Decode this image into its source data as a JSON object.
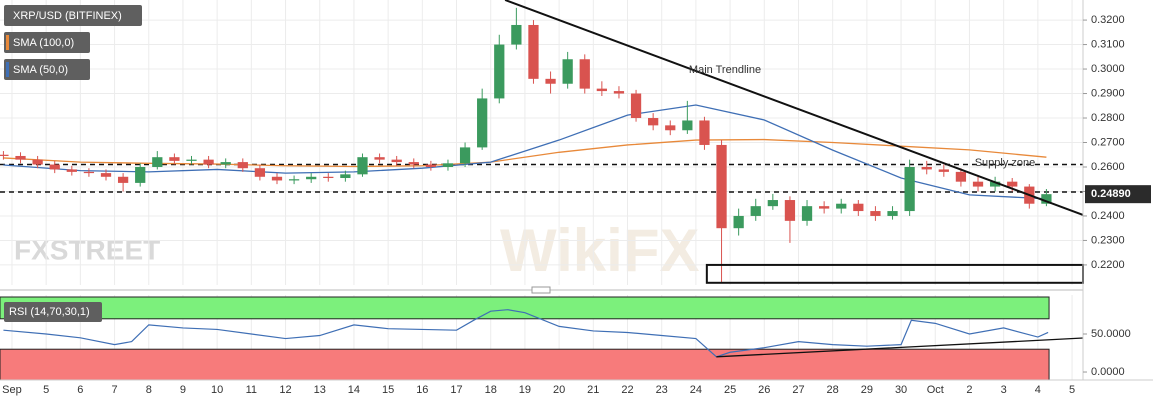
{
  "chart_data": [
    {
      "type": "candlestick",
      "title": "XRP/USD (BITFINEX)",
      "x": [
        3.75,
        4.25,
        4.75,
        5.25,
        5.75,
        6.25,
        6.75,
        7.25,
        7.75,
        8.25,
        8.75,
        9.25,
        9.75,
        10.25,
        10.75,
        11.25,
        11.75,
        12.25,
        12.75,
        13.25,
        13.75,
        14.25,
        14.75,
        15.25,
        15.75,
        16.25,
        16.75,
        17.25,
        17.75,
        18.25,
        18.75,
        19.25,
        19.75,
        20.25,
        20.75,
        21.25,
        21.75,
        22.25,
        22.75,
        23.25,
        23.75,
        24.25,
        24.75,
        25.25,
        25.75,
        26.25,
        26.75,
        27.25,
        27.75,
        28.25,
        28.75,
        29.25,
        29.75,
        30.25,
        30.75,
        31.25,
        31.75,
        32.25,
        32.75,
        33.25,
        33.75,
        34.25
      ],
      "open": [
        0.265,
        0.2645,
        0.263,
        0.261,
        0.259,
        0.258,
        0.2575,
        0.256,
        0.2535,
        0.26,
        0.264,
        0.2625,
        0.263,
        0.261,
        0.262,
        0.2595,
        0.256,
        0.2545,
        0.255,
        0.256,
        0.2555,
        0.257,
        0.264,
        0.263,
        0.262,
        0.261,
        0.26,
        0.2615,
        0.268,
        0.288,
        0.31,
        0.318,
        0.296,
        0.294,
        0.304,
        0.292,
        0.291,
        0.29,
        0.28,
        0.277,
        0.275,
        0.279,
        0.269,
        0.235,
        0.24,
        0.244,
        0.2465,
        0.238,
        0.244,
        0.243,
        0.245,
        0.242,
        0.24,
        0.242,
        0.26,
        0.259,
        0.258,
        0.254,
        0.252,
        0.254,
        0.252,
        0.245
      ],
      "high": [
        0.2665,
        0.266,
        0.2645,
        0.2625,
        0.2605,
        0.2595,
        0.259,
        0.2575,
        0.2615,
        0.2665,
        0.2655,
        0.2645,
        0.2645,
        0.2635,
        0.2635,
        0.261,
        0.2575,
        0.2565,
        0.2575,
        0.2575,
        0.2585,
        0.2655,
        0.2655,
        0.2645,
        0.2635,
        0.2625,
        0.263,
        0.27,
        0.292,
        0.314,
        0.325,
        0.32,
        0.299,
        0.307,
        0.306,
        0.295,
        0.293,
        0.2915,
        0.282,
        0.279,
        0.287,
        0.2805,
        0.271,
        0.243,
        0.247,
        0.249,
        0.248,
        0.2465,
        0.246,
        0.247,
        0.2465,
        0.244,
        0.244,
        0.263,
        0.2625,
        0.261,
        0.2595,
        0.256,
        0.256,
        0.2555,
        0.253,
        0.251
      ],
      "low": [
        0.263,
        0.2615,
        0.2595,
        0.2575,
        0.2565,
        0.256,
        0.2545,
        0.25,
        0.252,
        0.259,
        0.261,
        0.261,
        0.2595,
        0.2595,
        0.258,
        0.2545,
        0.253,
        0.253,
        0.2535,
        0.254,
        0.254,
        0.256,
        0.2615,
        0.2605,
        0.2595,
        0.2585,
        0.2585,
        0.26,
        0.267,
        0.286,
        0.308,
        0.294,
        0.29,
        0.292,
        0.29,
        0.289,
        0.288,
        0.2785,
        0.275,
        0.273,
        0.2735,
        0.267,
        0.213,
        0.232,
        0.238,
        0.2425,
        0.229,
        0.236,
        0.241,
        0.241,
        0.24,
        0.238,
        0.2385,
        0.24,
        0.257,
        0.256,
        0.252,
        0.25,
        0.25,
        0.25,
        0.243,
        0.244
      ],
      "close": [
        0.2645,
        0.263,
        0.261,
        0.259,
        0.258,
        0.2575,
        0.256,
        0.2535,
        0.26,
        0.264,
        0.2625,
        0.263,
        0.261,
        0.262,
        0.2595,
        0.256,
        0.2545,
        0.255,
        0.256,
        0.2555,
        0.257,
        0.264,
        0.263,
        0.262,
        0.261,
        0.26,
        0.2615,
        0.268,
        0.288,
        0.31,
        0.318,
        0.296,
        0.294,
        0.304,
        0.292,
        0.291,
        0.29,
        0.28,
        0.277,
        0.275,
        0.279,
        0.269,
        0.235,
        0.24,
        0.244,
        0.2465,
        0.238,
        0.244,
        0.243,
        0.245,
        0.242,
        0.24,
        0.242,
        0.26,
        0.259,
        0.258,
        0.254,
        0.252,
        0.254,
        0.252,
        0.245,
        0.2489
      ],
      "up_color": "#3b9a5e",
      "down_color": "#d9534f",
      "series": [
        {
          "name": "SMA (100,0)",
          "color": "#e8893a",
          "x": [
            3.75,
            6,
            8,
            10,
            12,
            14,
            16,
            18,
            20,
            22,
            24,
            26,
            28,
            30,
            32,
            34.25
          ],
          "values": [
            0.2637,
            0.262,
            0.2615,
            0.2612,
            0.2605,
            0.2602,
            0.2605,
            0.262,
            0.266,
            0.269,
            0.271,
            0.2712,
            0.27,
            0.2685,
            0.267,
            0.264
          ]
        },
        {
          "name": "SMA (50,0)",
          "color": "#3f6fb5",
          "x": [
            3.75,
            6,
            8,
            10,
            12,
            14,
            16,
            18,
            20,
            22,
            24,
            26,
            28,
            30,
            32,
            34.25
          ],
          "values": [
            0.2608,
            0.2585,
            0.258,
            0.259,
            0.2575,
            0.258,
            0.2595,
            0.262,
            0.271,
            0.2812,
            0.2853,
            0.2792,
            0.2669,
            0.2555,
            0.2486,
            0.247
          ]
        }
      ],
      "levels": [
        0.261,
        0.2498
      ],
      "trendline": {
        "label": "Main Trendline",
        "x": [
          18.42,
          35.32
        ],
        "y": [
          0.3282,
          0.2404
        ]
      },
      "supply_label": "Supply zone",
      "zone_box": {
        "x": [
          24.32,
          35.32
        ],
        "y": [
          0.2127,
          0.22
        ]
      },
      "last_price": 0.2489,
      "last_price_label": "0.24890",
      "xlim": [
        3.65,
        35.32
      ],
      "ylim": [
        0.2118,
        0.3282
      ],
      "yticks": [
        {
          "value": 0.32,
          "label": "0.3200"
        },
        {
          "value": 0.31,
          "label": "0.3100"
        },
        {
          "value": 0.3,
          "label": "0.3000"
        },
        {
          "value": 0.29,
          "label": "0.2900"
        },
        {
          "value": 0.28,
          "label": "0.2800"
        },
        {
          "value": 0.27,
          "label": "0.2700"
        },
        {
          "value": 0.26,
          "label": "0.2600"
        },
        {
          "value": 0.25,
          "label": "0.2500"
        },
        {
          "value": 0.24,
          "label": "0.2400"
        },
        {
          "value": 0.23,
          "label": "0.2300"
        },
        {
          "value": 0.22,
          "label": "0.2200"
        }
      ],
      "watermarks": [
        "FXSTREET",
        "WikiFX"
      ],
      "grid": true
    },
    {
      "type": "line",
      "title": "RSI (14,70,30,1)",
      "x": [
        3.75,
        5,
        6,
        7,
        7.5,
        8,
        9,
        10,
        11,
        12,
        13,
        14,
        15,
        16,
        17,
        17.5,
        18,
        18.5,
        19,
        20,
        21,
        22,
        23,
        24,
        24.6,
        25,
        26,
        27,
        28,
        29,
        30,
        30.3,
        31,
        32,
        33,
        34,
        34.3
      ],
      "values": [
        55,
        50,
        45,
        36,
        40,
        62,
        58,
        56,
        50,
        44,
        48,
        62,
        57,
        56,
        55,
        68,
        80,
        82,
        78,
        60,
        54,
        52,
        48,
        44,
        20,
        26,
        32,
        40,
        36,
        34,
        36,
        68,
        64,
        50,
        58,
        46,
        52
      ],
      "color": "#3f6fb5",
      "upper_band": 70,
      "lower_band": 30,
      "trendline": {
        "x": [
          24.6,
          35.32
        ],
        "y": [
          20,
          44.7
        ]
      },
      "xlim": [
        3.65,
        35.32
      ],
      "ylim": [
        -10.5,
        101.3
      ],
      "yticks": [
        {
          "value": 50,
          "label": "50.0000"
        },
        {
          "value": 0,
          "label": "0.0000"
        }
      ],
      "xticks": [
        {
          "value": 4,
          "label": "Sep"
        },
        5,
        6,
        7,
        8,
        9,
        10,
        11,
        12,
        13,
        14,
        15,
        16,
        17,
        18,
        19,
        20,
        21,
        22,
        23,
        24,
        25,
        26,
        27,
        28,
        29,
        30,
        {
          "value": 31,
          "label": "Oct"
        },
        {
          "value": 32,
          "label": "2"
        },
        {
          "value": 33,
          "label": "3"
        },
        {
          "value": 34,
          "label": "4"
        },
        {
          "value": 35,
          "label": "5"
        }
      ]
    }
  ]
}
